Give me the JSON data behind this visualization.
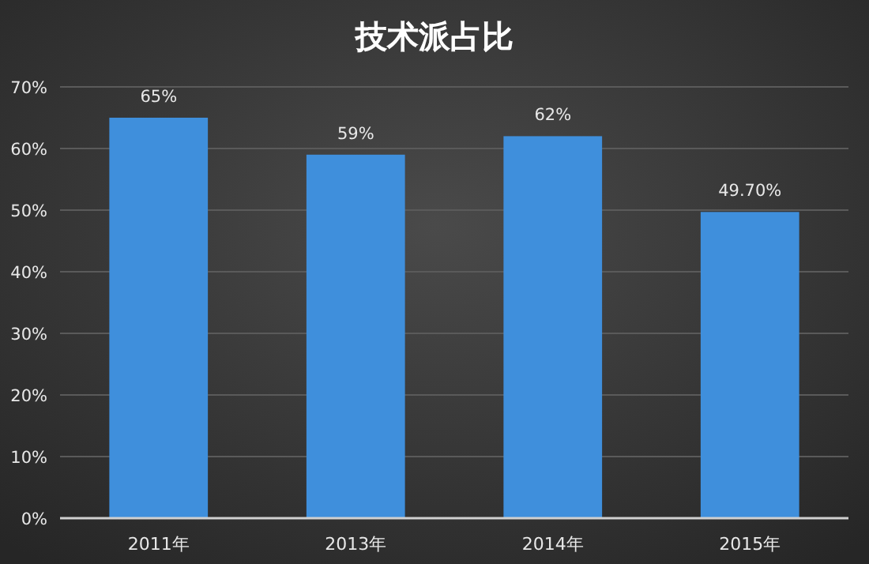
{
  "chart_data": {
    "type": "bar",
    "title": "技术派占比",
    "categories": [
      "2011年",
      "2013年",
      "2014年",
      "2015年"
    ],
    "values": [
      65,
      59,
      62,
      49.7
    ],
    "value_labels": [
      "65%",
      "59%",
      "62%",
      "49.70%"
    ],
    "color": "#3f8fdc",
    "ylim": [
      0,
      70
    ],
    "yticks": [
      {
        "value": 0,
        "label": "0%"
      },
      {
        "value": 10,
        "label": "10%"
      },
      {
        "value": 20,
        "label": "20%"
      },
      {
        "value": 30,
        "label": "30%"
      },
      {
        "value": 40,
        "label": "40%"
      },
      {
        "value": 50,
        "label": "50%"
      },
      {
        "value": 60,
        "label": "60%"
      },
      {
        "value": 70,
        "label": "70%"
      }
    ],
    "grid": "y"
  }
}
